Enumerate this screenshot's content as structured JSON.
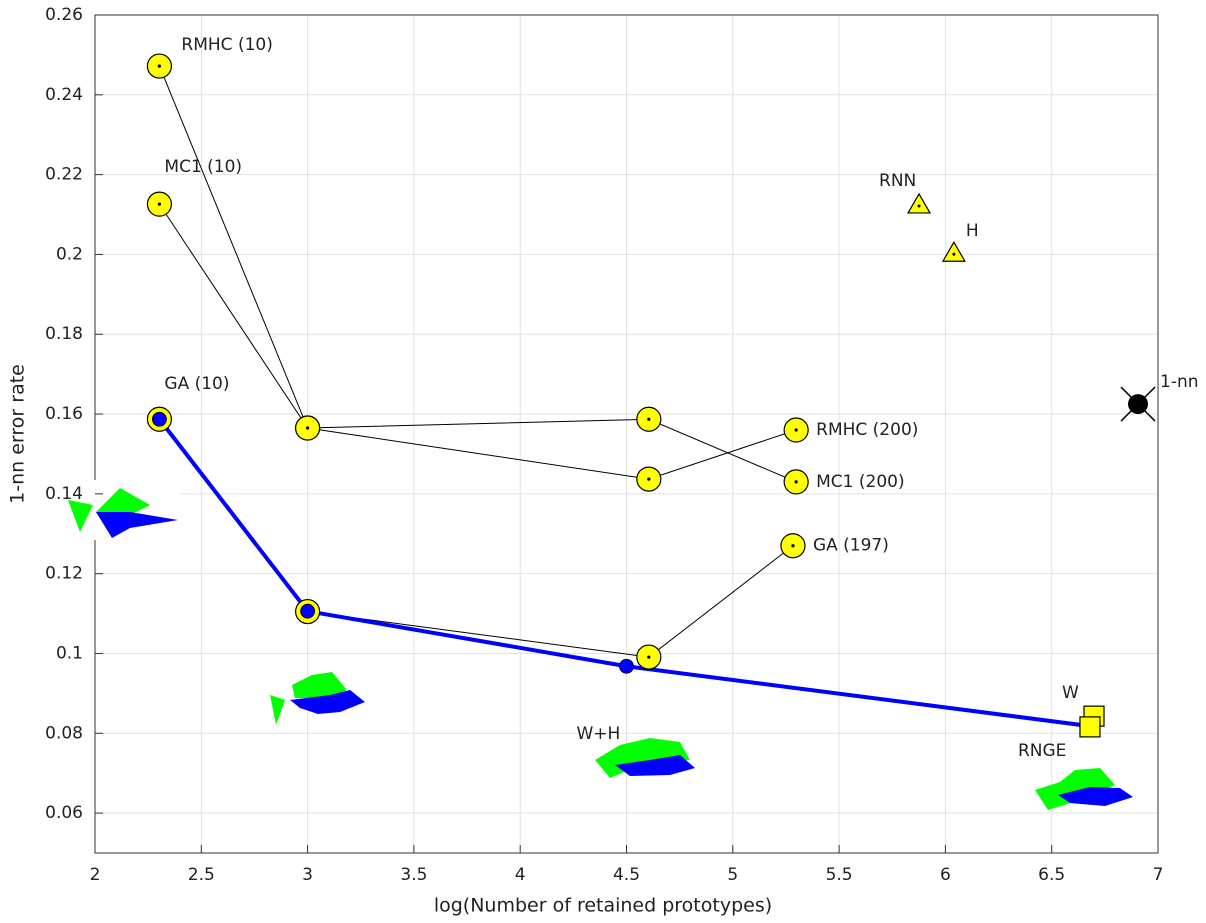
{
  "chart_data": {
    "type": "line",
    "xlabel": "log(Number of retained prototypes)",
    "ylabel": "1-nn error rate",
    "xlim": [
      2,
      7
    ],
    "ylim": [
      0.05,
      0.26
    ],
    "xticks": [
      2,
      2.5,
      3,
      3.5,
      4,
      4.5,
      5,
      5.5,
      6,
      6.5,
      7
    ],
    "yticks": [
      0.06,
      0.08,
      0.1,
      0.12,
      0.14,
      0.16,
      0.18,
      0.2,
      0.22,
      0.24,
      0.26
    ],
    "grid": true,
    "series": [
      {
        "color": "#000000",
        "marker": "circle",
        "x": [
          2.303,
          3,
          4.605,
          5.298
        ],
        "values": [
          0.2472,
          0.1565,
          0.1437,
          0.156
        ],
        "point_labels": [
          "RMHC (10)",
          null,
          null,
          "RMHC (200)"
        ]
      },
      {
        "color": "#000000",
        "marker": "circle",
        "x": [
          2.303,
          3,
          4.605,
          5.298
        ],
        "values": [
          0.2126,
          0.1565,
          0.1587,
          0.143
        ],
        "point_labels": [
          "MC1 (10)",
          null,
          null,
          "MC1 (200)"
        ]
      },
      {
        "color": "#000000",
        "marker": "circle",
        "x": [
          2.303,
          3,
          4.605,
          5.283
        ],
        "values": [
          0.1587,
          0.1105,
          0.0991,
          0.127
        ],
        "point_labels": [
          "GA (10)",
          null,
          null,
          "GA (197)"
        ]
      },
      {
        "color": "#0000ff",
        "marker": "dot",
        "x": [
          2.303,
          3,
          4.5,
          6.68
        ],
        "values": [
          0.1587,
          0.1106,
          0.0968,
          0.0818
        ],
        "point_labels": [
          null,
          null,
          "W+H",
          null
        ]
      },
      {
        "color": "#000000",
        "marker": "triangle",
        "x": [
          5.876
        ],
        "values": [
          0.2124
        ],
        "point_labels": [
          "RNN"
        ]
      },
      {
        "color": "#000000",
        "marker": "triangle",
        "x": [
          6.04
        ],
        "values": [
          0.2003
        ],
        "point_labels": [
          "H"
        ]
      },
      {
        "color": "#000000",
        "marker": "square",
        "x": [
          6.699
        ],
        "values": [
          0.0843
        ],
        "point_labels": [
          "W"
        ]
      },
      {
        "color": "#000000",
        "marker": "square",
        "x": [
          6.68
        ],
        "values": [
          0.0816
        ],
        "point_labels": [
          "RNGE"
        ]
      },
      {
        "color": "#000000",
        "marker": "cross",
        "x": [
          6.906
        ],
        "values": [
          0.1625
        ],
        "point_labels": [
          "1-nn"
        ]
      }
    ]
  }
}
